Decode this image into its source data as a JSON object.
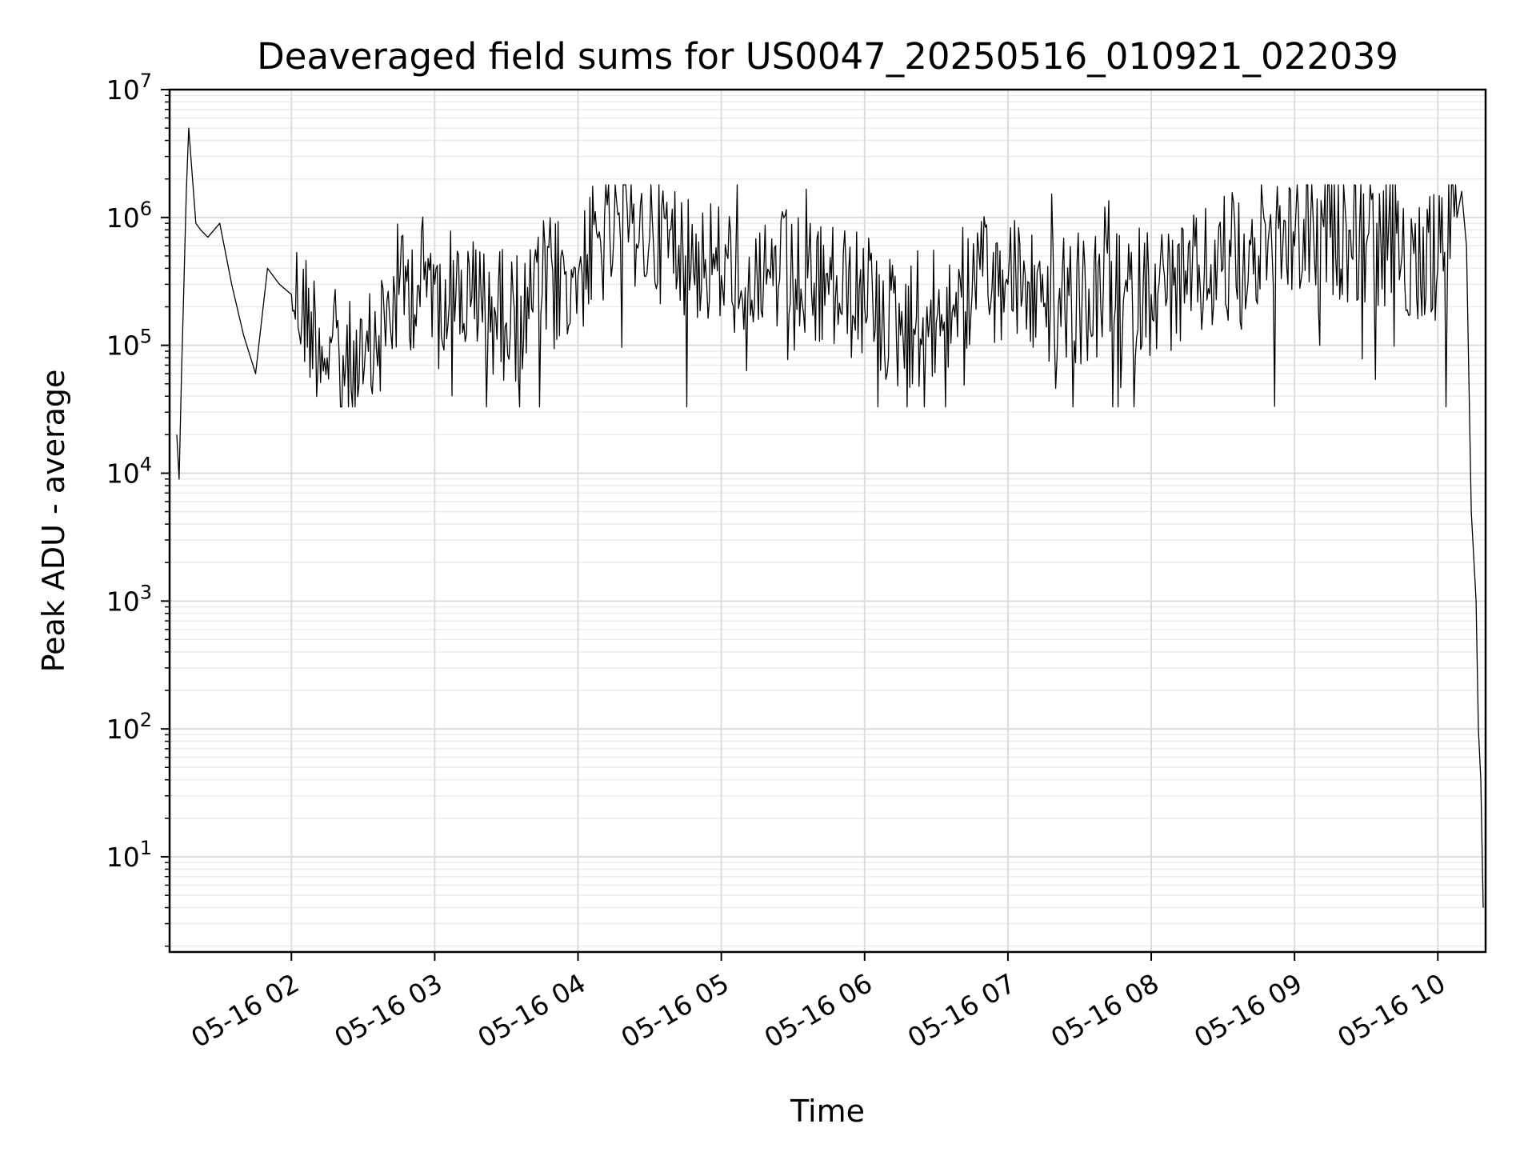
{
  "chart_data": {
    "type": "line",
    "title": "Deaveraged field sums for US0047_20250516_010921_022039",
    "xlabel": "Time",
    "ylabel": "Peak ADU - average",
    "yscale": "log",
    "ylim": [
      1.8,
      10000000
    ],
    "xlim": [
      "2025-05-16 01:09",
      "2025-05-16 10:20"
    ],
    "grid": true,
    "line_color": "#000000",
    "x_ticks": [
      {
        "value": "2025-05-16 02:00",
        "label": "05-16 02"
      },
      {
        "value": "2025-05-16 03:00",
        "label": "05-16 03"
      },
      {
        "value": "2025-05-16 04:00",
        "label": "05-16 04"
      },
      {
        "value": "2025-05-16 05:00",
        "label": "05-16 05"
      },
      {
        "value": "2025-05-16 06:00",
        "label": "05-16 06"
      },
      {
        "value": "2025-05-16 07:00",
        "label": "05-16 07"
      },
      {
        "value": "2025-05-16 08:00",
        "label": "05-16 08"
      },
      {
        "value": "2025-05-16 09:00",
        "label": "05-16 09"
      },
      {
        "value": "2025-05-16 10:00",
        "label": "05-16 10"
      }
    ],
    "y_ticks": [
      {
        "value": 10,
        "base": "10",
        "exp": "1"
      },
      {
        "value": 100,
        "base": "10",
        "exp": "2"
      },
      {
        "value": 1000,
        "base": "10",
        "exp": "3"
      },
      {
        "value": 10000,
        "base": "10",
        "exp": "4"
      },
      {
        "value": 100000,
        "base": "10",
        "exp": "5"
      },
      {
        "value": 1000000,
        "base": "10",
        "exp": "6"
      },
      {
        "value": 10000000,
        "base": "10",
        "exp": "7"
      }
    ],
    "series": [
      {
        "x": [
          "2025-05-16 01:12",
          "2025-05-16 01:13",
          "2025-05-16 01:14",
          "2025-05-16 01:15",
          "2025-05-16 01:16",
          "2025-05-16 01:17",
          "2025-05-16 01:20",
          "2025-05-16 01:22",
          "2025-05-16 01:25",
          "2025-05-16 01:30",
          "2025-05-16 01:35",
          "2025-05-16 01:40",
          "2025-05-16 01:45",
          "2025-05-16 01:50",
          "2025-05-16 01:55",
          "2025-05-16 02:00",
          "2025-05-16 02:15",
          "2025-05-16 02:30",
          "2025-05-16 02:45",
          "2025-05-16 03:00",
          "2025-05-16 03:15",
          "2025-05-16 03:30",
          "2025-05-16 03:45",
          "2025-05-16 04:00",
          "2025-05-16 04:15",
          "2025-05-16 04:30",
          "2025-05-16 04:45",
          "2025-05-16 05:00",
          "2025-05-16 05:15",
          "2025-05-16 05:30",
          "2025-05-16 05:45",
          "2025-05-16 06:00",
          "2025-05-16 06:15",
          "2025-05-16 06:30",
          "2025-05-16 06:45",
          "2025-05-16 07:00",
          "2025-05-16 07:15",
          "2025-05-16 07:30",
          "2025-05-16 07:45",
          "2025-05-16 08:00",
          "2025-05-16 08:15",
          "2025-05-16 08:30",
          "2025-05-16 08:45",
          "2025-05-16 09:00",
          "2025-05-16 09:15",
          "2025-05-16 09:30",
          "2025-05-16 09:45",
          "2025-05-16 10:00",
          "2025-05-16 10:08",
          "2025-05-16 10:10",
          "2025-05-16 10:12",
          "2025-05-16 10:14",
          "2025-05-16 10:16",
          "2025-05-16 10:17",
          "2025-05-16 10:18",
          "2025-05-16 10:19"
        ],
        "y": [
          20000,
          9000,
          60000,
          300000,
          1600000,
          5000000,
          900000,
          800000,
          700000,
          900000,
          300000,
          120000,
          60000,
          400000,
          300000,
          250000,
          80000,
          50000,
          250000,
          300000,
          200000,
          150000,
          250000,
          350000,
          700000,
          700000,
          500000,
          350000,
          350000,
          300000,
          250000,
          200000,
          120000,
          150000,
          250000,
          300000,
          200000,
          200000,
          200000,
          250000,
          250000,
          400000,
          500000,
          600000,
          700000,
          600000,
          500000,
          400000,
          1000000,
          1600000,
          600000,
          5000,
          1000,
          100,
          40,
          4
        ]
      }
    ]
  }
}
